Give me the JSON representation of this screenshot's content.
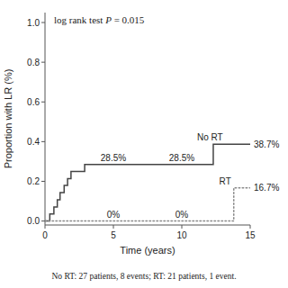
{
  "chart_data": {
    "type": "line",
    "xlabel": "Time (years)",
    "ylabel": "Proportion with LR (%)",
    "note": [
      "log rank test ",
      "P",
      " = 0.015"
    ],
    "caption": "No RT: 27 patients, 8 events; RT: 21 patients, 1 event.",
    "xlim": [
      0,
      15
    ],
    "ylim": [
      -0.02,
      1.05
    ],
    "xticks": [
      0,
      5,
      10,
      15
    ],
    "yticks": [
      {
        "value": 0.0,
        "label": "0.0"
      },
      0.2,
      0.4,
      0.6,
      0.8,
      {
        "value": 1.0,
        "label": "1.0"
      }
    ],
    "grid": false,
    "series": [
      {
        "name": "No RT",
        "color": "#444444",
        "line_style": "solid",
        "x": [
          0,
          0.35,
          0.35,
          0.65,
          0.65,
          0.9,
          0.9,
          1.1,
          1.1,
          1.4,
          1.4,
          1.65,
          1.65,
          1.9,
          1.9,
          2.1,
          2.1,
          2.4,
          2.4,
          2.9,
          2.9,
          4.5,
          4.5,
          12.3,
          12.3,
          13.2,
          13.2,
          15
        ],
        "values": [
          0,
          0,
          0.036,
          0.036,
          0.071,
          0.071,
          0.107,
          0.107,
          0.143,
          0.143,
          0.179,
          0.179,
          0.214,
          0.214,
          0.25,
          0.25,
          0.25,
          0.25,
          0.25,
          0.25,
          0.285,
          0.285,
          0.285,
          0.285,
          0.387,
          0.387,
          0.387,
          0.387
        ]
      },
      {
        "name": "RT",
        "color": "#888888",
        "line_style": "dotted",
        "x": [
          0,
          13.8,
          13.8,
          15
        ],
        "values": [
          0,
          0,
          0.167,
          0.167
        ]
      }
    ],
    "annotations": [
      {
        "text": "28.5%",
        "x": 5,
        "y": 0.285
      },
      {
        "text": "28.5%",
        "x": 10,
        "y": 0.285
      },
      {
        "text": "38.7%",
        "x": 15,
        "y": 0.387
      },
      {
        "text": "0%",
        "x": 5,
        "y": 0
      },
      {
        "text": "0%",
        "x": 10,
        "y": 0
      },
      {
        "text": "16.7%",
        "x": 15,
        "y": 0.167
      }
    ]
  }
}
